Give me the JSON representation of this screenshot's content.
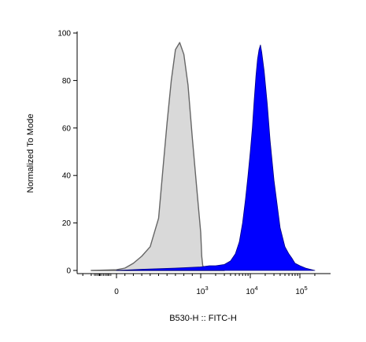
{
  "chart_data": {
    "type": "area",
    "xlabel": "B530-H :: FITC-H",
    "ylabel": "Normalized To Mode",
    "x_scale": "biexponential",
    "x_ticks": [
      {
        "label": "0",
        "value": 0
      },
      {
        "label": "10",
        "exp": "3",
        "value": 1000
      },
      {
        "label": "10",
        "exp": "4",
        "value": 10000
      },
      {
        "label": "10",
        "exp": "5",
        "value": 100000
      }
    ],
    "y_ticks": [
      0,
      20,
      40,
      60,
      80,
      100
    ],
    "ylim": [
      0,
      100
    ],
    "grid": false,
    "series": [
      {
        "fill": "#d9d9d9",
        "stroke": "#666666",
        "points": [
          [
            -300,
            0
          ],
          [
            0,
            0.3
          ],
          [
            100,
            1
          ],
          [
            200,
            3
          ],
          [
            300,
            6
          ],
          [
            400,
            10
          ],
          [
            500,
            22
          ],
          [
            550,
            42
          ],
          [
            600,
            62
          ],
          [
            650,
            80
          ],
          [
            700,
            93
          ],
          [
            750,
            96
          ],
          [
            800,
            91
          ],
          [
            850,
            78
          ],
          [
            900,
            56
          ],
          [
            950,
            36
          ],
          [
            1000,
            16
          ],
          [
            1050,
            6
          ],
          [
            1100,
            2
          ],
          [
            1200,
            0.8
          ],
          [
            1500,
            0.3
          ],
          [
            3000,
            0
          ]
        ]
      },
      {
        "fill": "#0000ff",
        "stroke": "#000080",
        "points": [
          [
            0,
            0
          ],
          [
            300,
            0.5
          ],
          [
            700,
            1
          ],
          [
            1000,
            1.5
          ],
          [
            1500,
            2
          ],
          [
            2000,
            2
          ],
          [
            3000,
            2.5
          ],
          [
            4000,
            4
          ],
          [
            5000,
            7
          ],
          [
            6000,
            12
          ],
          [
            7000,
            20
          ],
          [
            8000,
            30
          ],
          [
            9000,
            40
          ],
          [
            10000,
            50
          ],
          [
            11000,
            60
          ],
          [
            12000,
            72
          ],
          [
            13000,
            82
          ],
          [
            14000,
            89
          ],
          [
            15000,
            93
          ],
          [
            16000,
            95
          ],
          [
            17000,
            92
          ],
          [
            19000,
            84
          ],
          [
            22000,
            70
          ],
          [
            25000,
            55
          ],
          [
            30000,
            38
          ],
          [
            40000,
            18
          ],
          [
            50000,
            10
          ],
          [
            60000,
            7
          ],
          [
            70000,
            5
          ],
          [
            80000,
            3
          ],
          [
            100000,
            2
          ],
          [
            130000,
            1
          ],
          [
            160000,
            0.5
          ],
          [
            200000,
            0
          ]
        ]
      }
    ]
  }
}
